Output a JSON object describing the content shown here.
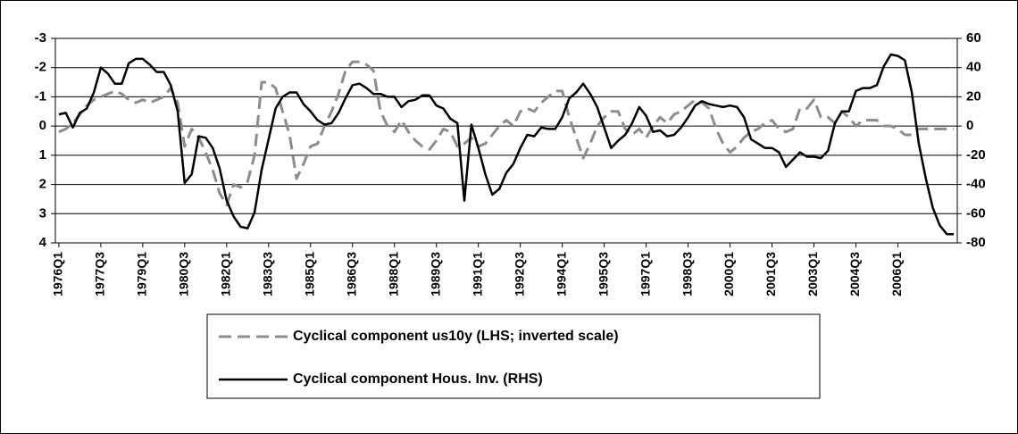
{
  "chart_data": {
    "type": "line",
    "categories": [
      "1976Q1",
      null,
      null,
      null,
      null,
      null,
      "1977Q3",
      null,
      null,
      null,
      null,
      null,
      "1979Q1",
      null,
      null,
      null,
      null,
      null,
      "1980Q3",
      null,
      null,
      null,
      null,
      null,
      "1982Q1",
      null,
      null,
      null,
      null,
      null,
      "1983Q3",
      null,
      null,
      null,
      null,
      null,
      "1985Q1",
      null,
      null,
      null,
      null,
      null,
      "1986Q3",
      null,
      null,
      null,
      null,
      null,
      "1988Q1",
      null,
      null,
      null,
      null,
      null,
      "1989Q3",
      null,
      null,
      null,
      null,
      null,
      "1991Q1",
      null,
      null,
      null,
      null,
      null,
      "1992Q3",
      null,
      null,
      null,
      null,
      null,
      "1994Q1",
      null,
      null,
      null,
      null,
      null,
      "1995Q3",
      null,
      null,
      null,
      null,
      null,
      "1997Q1",
      null,
      null,
      null,
      null,
      null,
      "1998Q3",
      null,
      null,
      null,
      null,
      null,
      "2000Q1",
      null,
      null,
      null,
      null,
      null,
      "2001Q3",
      null,
      null,
      null,
      null,
      null,
      "2003Q1",
      null,
      null,
      null,
      null,
      null,
      "2004Q3",
      null,
      null,
      null,
      null,
      null,
      "2006Q1",
      null,
      null,
      null,
      null,
      null,
      null,
      null,
      null
    ],
    "series": [
      {
        "name": "Cyclical component us10y (LHS; inverted scale)",
        "color": "#8c8c8c",
        "dashed": true,
        "axis": "y",
        "values": [
          0.2,
          0.1,
          -0.1,
          -0.4,
          -0.7,
          -0.9,
          -1.0,
          -1.1,
          -1.2,
          -1.1,
          -0.9,
          -0.8,
          -0.9,
          -0.8,
          -0.9,
          -1.0,
          -1.3,
          -0.8,
          0.7,
          0.1,
          0.4,
          0.9,
          1.5,
          2.3,
          2.7,
          2.0,
          2.1,
          1.9,
          1.0,
          -1.5,
          -1.5,
          -1.3,
          -0.5,
          0.3,
          1.8,
          1.3,
          0.7,
          0.6,
          0.0,
          -0.5,
          -1.1,
          -1.9,
          -2.2,
          -2.2,
          -2.1,
          -1.9,
          -0.5,
          0.0,
          0.2,
          -0.2,
          0.2,
          0.5,
          0.7,
          0.8,
          0.5,
          0.1,
          0.2,
          0.7,
          0.6,
          0.4,
          0.7,
          0.6,
          0.3,
          0.0,
          -0.2,
          0.0,
          -0.5,
          -0.6,
          -0.5,
          -0.8,
          -1.0,
          -1.2,
          -1.2,
          -0.3,
          0.4,
          1.1,
          0.6,
          0.0,
          -0.3,
          -0.5,
          -0.5,
          0.1,
          0.3,
          0.1,
          0.4,
          0.0,
          -0.3,
          -0.1,
          -0.4,
          -0.5,
          -0.7,
          -0.9,
          -0.8,
          -0.6,
          0.1,
          0.6,
          0.9,
          0.7,
          0.4,
          0.2,
          0.1,
          -0.1,
          -0.2,
          0.1,
          0.2,
          0.1,
          -0.6,
          -0.6,
          -0.9,
          -0.3,
          -0.3,
          -0.1,
          -0.5,
          -0.3,
          0.0,
          -0.2,
          -0.2,
          -0.2,
          0.0,
          0.0,
          0.1,
          0.3,
          0.3,
          0.1,
          0.1,
          0.1,
          0.1,
          0.1,
          0.1
        ]
      },
      {
        "name": "Cyclical component Hous. Inv. (RHS)",
        "color": "#000000",
        "dashed": false,
        "axis": "y2",
        "values": [
          8,
          9,
          -1,
          9,
          12,
          23,
          40,
          36,
          29,
          29,
          43,
          46,
          46,
          42,
          37,
          37,
          28,
          10,
          -39,
          -33,
          -7,
          -8,
          -15,
          -29,
          -51,
          -62,
          -69,
          -70,
          -59,
          -30,
          -9,
          12,
          20,
          23,
          23,
          15,
          10,
          4,
          1,
          2,
          9,
          19,
          28,
          29,
          26,
          22,
          22,
          20,
          20,
          13,
          17,
          18,
          21,
          21,
          14,
          12,
          5,
          2,
          -51,
          1,
          -15,
          -33,
          -47,
          -43,
          -32,
          -26,
          -15,
          -6,
          -7,
          -1,
          -2,
          -2,
          6,
          19,
          23,
          29,
          22,
          13,
          -1,
          -15,
          -10,
          -6,
          2,
          13,
          7,
          -4,
          -3,
          -7,
          -6,
          -1,
          6,
          14,
          17,
          15,
          14,
          13,
          14,
          13,
          6,
          -9,
          -12,
          -15,
          -15,
          -18,
          -28,
          -23,
          -18,
          -21,
          -21,
          -22,
          -17,
          2,
          10,
          10,
          24,
          26,
          26,
          28,
          41,
          49,
          48,
          45,
          23,
          -12,
          -36,
          -56,
          -68,
          -74,
          -74
        ]
      }
    ],
    "ylim": [
      -3,
      4
    ],
    "y_inverted": true,
    "yticks": [
      -3,
      -2,
      -1,
      0,
      1,
      2,
      3,
      4
    ],
    "y2lim": [
      -80,
      60
    ],
    "y2ticks": [
      60,
      40,
      20,
      0,
      -20,
      -40,
      -60,
      -80
    ],
    "grid": true,
    "legend": "bottom"
  }
}
